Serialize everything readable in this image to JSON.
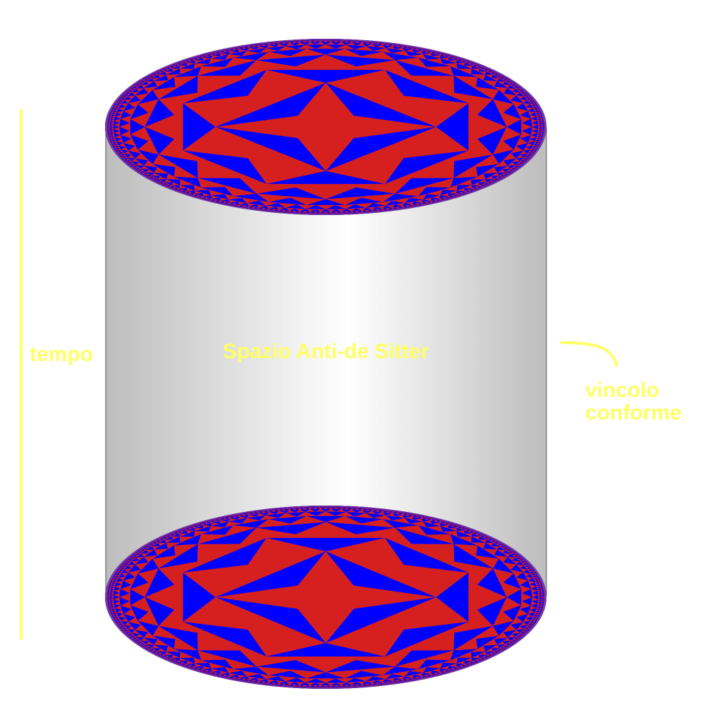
{
  "labels": {
    "time": "tempo",
    "space": "Spazio Anti-de Sitter",
    "boundary": [
      "vincolo",
      "conforme"
    ]
  }
}
